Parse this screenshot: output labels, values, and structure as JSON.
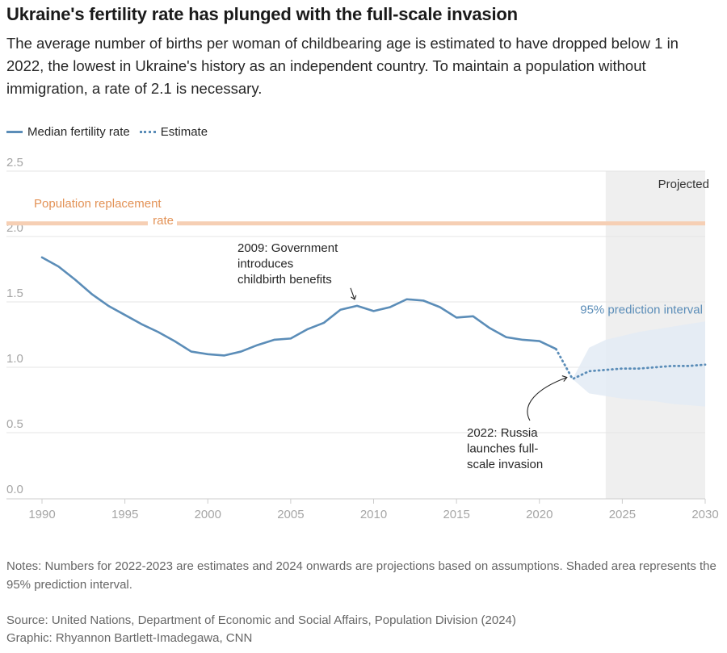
{
  "title": "Ukraine's fertility rate has plunged with the full-scale invasion",
  "subtitle": "The average number of births per woman of childbearing age is estimated to have dropped below 1 in 2022, the lowest in Ukraine's history as an independent country. To maintain a population without immigration, a rate of 2.1 is necessary.",
  "legend": {
    "median": "Median fertility rate",
    "estimate": "Estimate"
  },
  "notes": "Notes: Numbers for 2022-2023 are estimates and 2024 onwards are projections based on assumptions. Shaded area represents the 95% prediction interval.",
  "source": "Source: United Nations, Department of Economic and Social Affairs, Population Division (2024)",
  "credit": "Graphic: Rhyannon Bartlett-Imadegawa, CNN",
  "colors": {
    "line": "#5b8db8",
    "band": "#e3ebf4",
    "replacement": "#f6cfb4",
    "replacement_text": "#e39256",
    "projected_bg": "#efefef",
    "grid": "#e6e6e6",
    "axis_text": "#a6a6a6"
  },
  "chart_data": {
    "type": "line",
    "xlim": [
      1990,
      2030
    ],
    "ylim": [
      0,
      2.5
    ],
    "x_ticks": [
      "1990",
      "1995",
      "2000",
      "2005",
      "2010",
      "2015",
      "2020",
      "2025",
      "2030"
    ],
    "y_ticks": [
      "0.0",
      "0.5",
      "1.0",
      "1.5",
      "2.0",
      "2.5"
    ],
    "series": [
      {
        "name": "Median fertility rate",
        "style": "solid",
        "x": [
          1990,
          1991,
          1992,
          1993,
          1994,
          1995,
          1996,
          1997,
          1998,
          1999,
          2000,
          2001,
          2002,
          2003,
          2004,
          2005,
          2006,
          2007,
          2008,
          2009,
          2010,
          2011,
          2012,
          2013,
          2014,
          2015,
          2016,
          2017,
          2018,
          2019,
          2020,
          2021
        ],
        "values": [
          1.84,
          1.77,
          1.67,
          1.56,
          1.47,
          1.4,
          1.33,
          1.27,
          1.2,
          1.12,
          1.1,
          1.09,
          1.12,
          1.17,
          1.21,
          1.22,
          1.29,
          1.34,
          1.44,
          1.47,
          1.43,
          1.46,
          1.52,
          1.51,
          1.46,
          1.38,
          1.39,
          1.3,
          1.23,
          1.21,
          1.2,
          1.14
        ]
      },
      {
        "name": "Estimate",
        "style": "dotted",
        "x": [
          2021,
          2022,
          2023,
          2024,
          2025,
          2026,
          2027,
          2028,
          2029,
          2030
        ],
        "values": [
          1.14,
          0.91,
          0.97,
          0.98,
          0.99,
          0.99,
          1.0,
          1.01,
          1.01,
          1.02
        ]
      }
    ],
    "prediction_interval": {
      "x": [
        2022,
        2023,
        2024,
        2025,
        2026,
        2027,
        2028,
        2029,
        2030
      ],
      "upper": [
        0.91,
        1.15,
        1.21,
        1.24,
        1.27,
        1.29,
        1.31,
        1.33,
        1.35
      ],
      "lower": [
        0.91,
        0.8,
        0.78,
        0.76,
        0.75,
        0.74,
        0.72,
        0.71,
        0.7
      ],
      "label": "95% prediction interval"
    },
    "replacement": {
      "value": 2.1,
      "label_line1": "Population replacement",
      "label_line2": "rate"
    },
    "projected": {
      "start": 2024,
      "end": 2030,
      "label": "Projected"
    },
    "annotations": [
      {
        "lines": [
          "2009: Government",
          "introduces",
          "childbirth benefits"
        ],
        "target_year": 2009,
        "target_value": 1.47
      },
      {
        "lines": [
          "2022: Russia",
          "launches full-",
          "scale invasion"
        ],
        "target_year": 2022,
        "target_value": 0.91
      }
    ]
  }
}
